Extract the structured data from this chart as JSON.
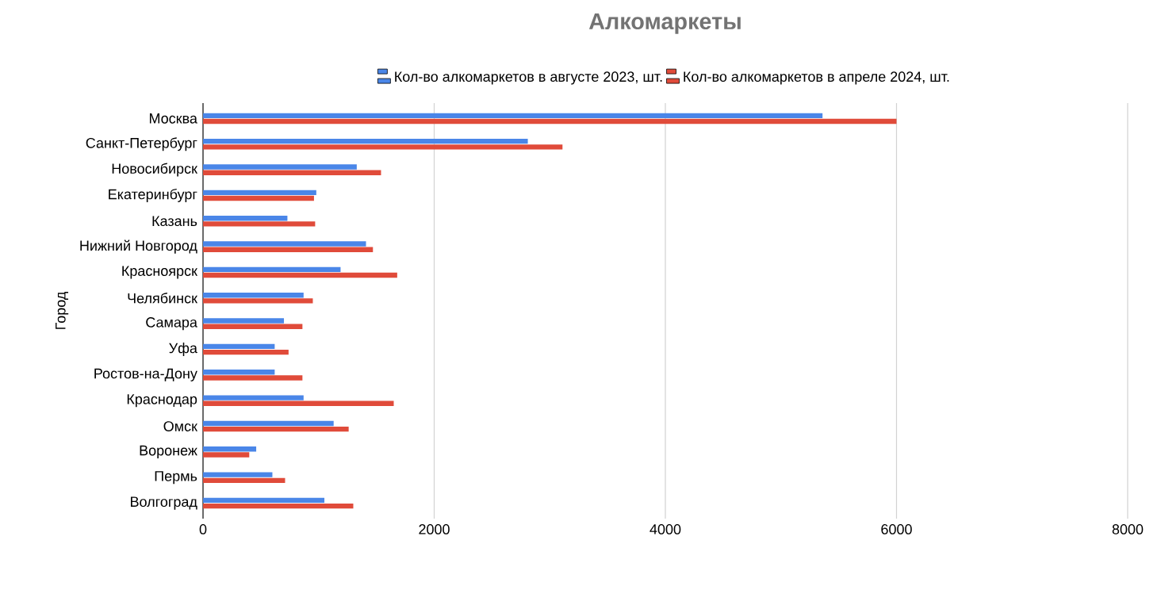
{
  "chart_data": {
    "type": "bar",
    "orientation": "horizontal",
    "title": "Алкомаркеты",
    "ylabel": "Город",
    "categories": [
      "Москва",
      "Санкт-Петербург",
      "Новосибирск",
      "Екатеринбург",
      "Казань",
      "Нижний Новгород",
      "Красноярск",
      "Челябинск",
      "Самара",
      "Уфа",
      "Ростов-на-Дону",
      "Краснодар",
      "Омск",
      "Воронеж",
      "Пермь",
      "Волгоград"
    ],
    "series": [
      {
        "name": "Кол-во алкомаркетов в августе 2023, шт.",
        "color": "#4a86e8",
        "values": [
          5360,
          2810,
          1330,
          980,
          730,
          1410,
          1190,
          870,
          700,
          620,
          620,
          870,
          1130,
          460,
          600,
          1050
        ]
      },
      {
        "name": "Кол-во алкомаркетов в апреле 2024, шт.",
        "color": "#e04b3a",
        "values": [
          6000,
          3110,
          1540,
          960,
          970,
          1470,
          1680,
          950,
          860,
          740,
          860,
          1650,
          1260,
          400,
          710,
          1300
        ]
      }
    ],
    "xlim": [
      0,
      8000
    ],
    "xticks": [
      0,
      2000,
      4000,
      6000,
      8000
    ],
    "grid": "x",
    "legend": "top"
  }
}
